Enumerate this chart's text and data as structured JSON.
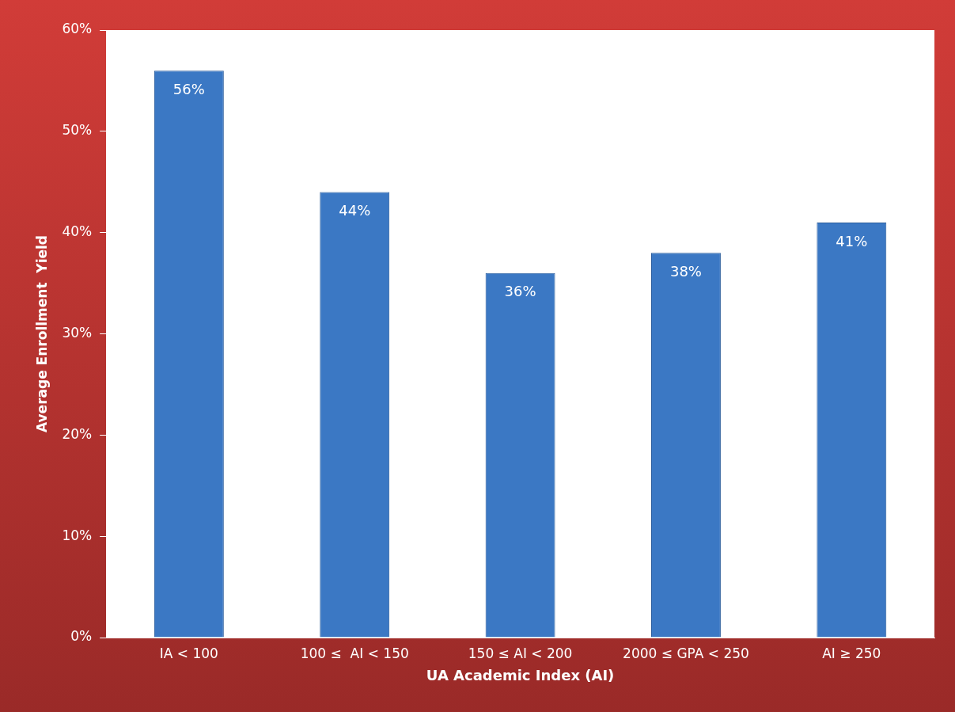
{
  "chart_data": {
    "type": "bar",
    "xlabel": "UA Academic Index (AI)",
    "ylabel": "Average Enrollment  Yield",
    "categories": [
      "IA < 100",
      "100 ≤  AI < 150",
      "150 ≤ AI < 200",
      "2000 ≤ GPA < 250",
      "AI ≥ 250"
    ],
    "values": [
      56,
      44,
      36,
      38,
      41
    ],
    "value_labels": [
      "56%",
      "44%",
      "36%",
      "38%",
      "41%"
    ],
    "color": "#3b78c4",
    "ylim": [
      0,
      60
    ],
    "yticks": [
      {
        "value": 0,
        "label": "0%"
      },
      {
        "value": 10,
        "label": "10%"
      },
      {
        "value": 20,
        "label": "20%"
      },
      {
        "value": 30,
        "label": "30%"
      },
      {
        "value": 40,
        "label": "40%"
      },
      {
        "value": 50,
        "label": "50%"
      },
      {
        "value": 60,
        "label": "60%"
      }
    ],
    "grid": false,
    "legend": false
  }
}
